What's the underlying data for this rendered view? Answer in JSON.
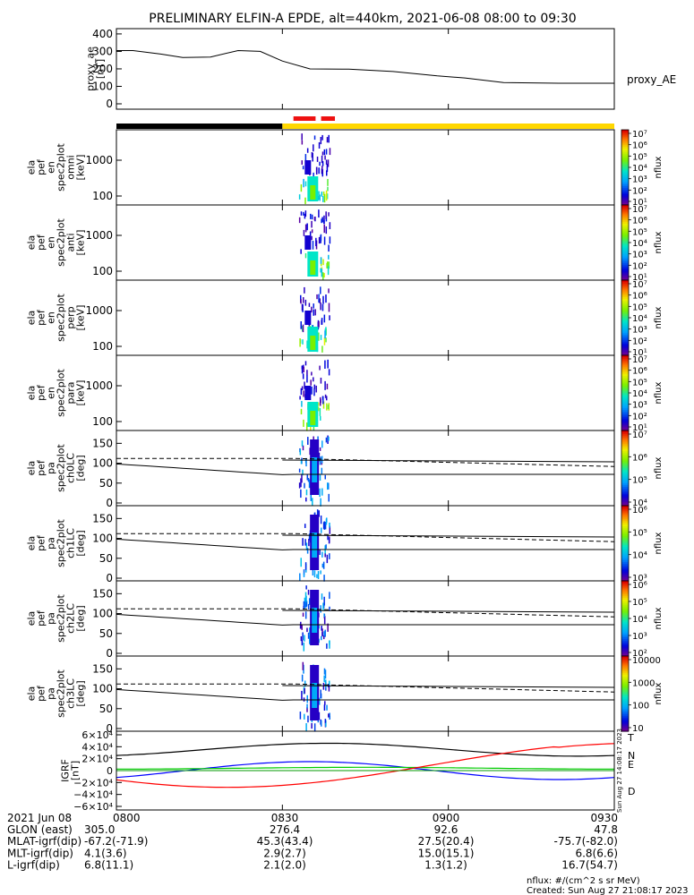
{
  "title": "PRELIMINARY ELFIN-A EPDE, alt=440km, 2021-06-08 08:00 to 09:30",
  "chart_data": [
    {
      "type": "line",
      "ylabel": [
        "proxy_ae",
        "[nT]"
      ],
      "ylim": [
        0,
        420
      ],
      "yticks": [
        0,
        100,
        200,
        300,
        400
      ],
      "x_minutes": [
        0,
        3,
        8,
        12,
        17,
        22,
        26,
        30,
        35,
        42,
        50,
        58,
        63,
        70,
        80,
        90
      ],
      "values": [
        305,
        305,
        285,
        265,
        268,
        305,
        300,
        245,
        200,
        198,
        185,
        160,
        148,
        122,
        118,
        118
      ],
      "label": "proxy_AE"
    },
    {
      "type": "heatmap",
      "ylabel": [
        "ela",
        "pef",
        "en",
        "spec2plot",
        "omni",
        "[keV]"
      ],
      "yticks": [
        "100",
        "1000"
      ],
      "colorbar_label": "nflux",
      "colorbar_ticks": [
        "10¹",
        "10²",
        "10³",
        "10⁴",
        "10⁵",
        "10⁶",
        "10⁷"
      ]
    },
    {
      "type": "heatmap",
      "ylabel": [
        "ela",
        "pef",
        "en",
        "spec2plot",
        "anti",
        "[keV]"
      ],
      "yticks": [
        "100",
        "1000"
      ],
      "colorbar_label": "nflux",
      "colorbar_ticks": [
        "10¹",
        "10²",
        "10³",
        "10⁴",
        "10⁵",
        "10⁶",
        "10⁷"
      ]
    },
    {
      "type": "heatmap",
      "ylabel": [
        "ela",
        "pef",
        "en",
        "spec2plot",
        "perp",
        "[keV]"
      ],
      "yticks": [
        "100",
        "1000"
      ],
      "colorbar_label": "nflux",
      "colorbar_ticks": [
        "10¹",
        "10²",
        "10³",
        "10⁴",
        "10⁵",
        "10⁶",
        "10⁷"
      ]
    },
    {
      "type": "heatmap",
      "ylabel": [
        "ela",
        "pef",
        "en",
        "spec2plot",
        "para",
        "[keV]"
      ],
      "yticks": [
        "100",
        "1000"
      ],
      "colorbar_label": "nflux",
      "colorbar_ticks": [
        "10¹",
        "10²",
        "10³",
        "10⁴",
        "10⁵",
        "10⁶",
        "10⁷"
      ]
    },
    {
      "type": "heatmap",
      "ylabel": [
        "ela",
        "pef",
        "pa",
        "spec2plot",
        "ch0LC",
        "[deg]"
      ],
      "yticks": [
        "0",
        "50",
        "100",
        "150"
      ],
      "colorbar_label": "nflux",
      "colorbar_ticks": [
        "10⁴",
        "10⁵",
        "10⁶",
        "10⁷"
      ]
    },
    {
      "type": "heatmap",
      "ylabel": [
        "ela",
        "pef",
        "pa",
        "spec2plot",
        "ch1LC",
        "[deg]"
      ],
      "yticks": [
        "0",
        "50",
        "100",
        "150"
      ],
      "colorbar_label": "nflux",
      "colorbar_ticks": [
        "10³",
        "10⁴",
        "10⁵",
        "10⁶"
      ]
    },
    {
      "type": "heatmap",
      "ylabel": [
        "ela",
        "pef",
        "pa",
        "spec2plot",
        "ch2LC",
        "[deg]"
      ],
      "yticks": [
        "0",
        "50",
        "100",
        "150"
      ],
      "colorbar_label": "nflux",
      "colorbar_ticks": [
        "10²",
        "10³",
        "10⁴",
        "10⁵",
        "10⁶"
      ]
    },
    {
      "type": "heatmap",
      "ylabel": [
        "ela",
        "pef",
        "pa",
        "spec2plot",
        "ch3LC",
        "[deg]"
      ],
      "yticks": [
        "0",
        "50",
        "100",
        "150"
      ],
      "colorbar_label": "nflux",
      "colorbar_ticks": [
        "10",
        "100",
        "1000",
        "10000"
      ]
    },
    {
      "type": "line",
      "ylabel": [
        "IGRF",
        "[nT]"
      ],
      "ylim": [
        -60000,
        60000
      ],
      "yticks": [
        "−6×10⁴",
        "−4×10⁴",
        "−2×10⁴",
        "0",
        "2×10⁴",
        "4×10⁴",
        "6×10⁴"
      ],
      "series": [
        {
          "name": "T",
          "color": "#000000"
        },
        {
          "name": "N",
          "color": "#0000ff"
        },
        {
          "name": "E",
          "color": "#00cc00"
        },
        {
          "name": "D",
          "color": "#ff0000"
        }
      ],
      "side_note": "Sun Aug 27 14:08:17 2023"
    }
  ],
  "x_axis": {
    "range_minutes": [
      0,
      90
    ],
    "tick_minutes": [
      0,
      30,
      60,
      90
    ],
    "tick_labels": [
      "0800",
      "0830",
      "0900",
      "0930"
    ],
    "date_label": "2021 Jun 08"
  },
  "state_bar": {
    "black_until_minute": 30,
    "yellow_from_minute": 30,
    "red_segments": [
      [
        32,
        36
      ],
      [
        37,
        39.5
      ]
    ]
  },
  "ephemeris": [
    {
      "label": "GLON (east)",
      "values": [
        "305.0",
        "276.4",
        "92.6",
        "47.8"
      ]
    },
    {
      "label": "MLAT-igrf(dip)",
      "values": [
        "-67.2(-71.9)",
        "45.3(43.4)",
        "27.5(20.4)",
        "-75.7(-82.0)"
      ]
    },
    {
      "label": "MLT-igrf(dip)",
      "values": [
        "4.1(3.6)",
        "2.9(2.7)",
        "15.0(15.1)",
        "6.8(6.6)"
      ]
    },
    {
      "label": "L-igrf(dip)",
      "values": [
        "6.8(11.1)",
        "2.1(2.0)",
        "1.3(1.2)",
        "16.7(54.7)"
      ]
    }
  ],
  "footer": {
    "units": "nflux: #/(cm^2 s sr MeV)",
    "created": "Created: Sun Aug 27 21:08:17 2023"
  }
}
